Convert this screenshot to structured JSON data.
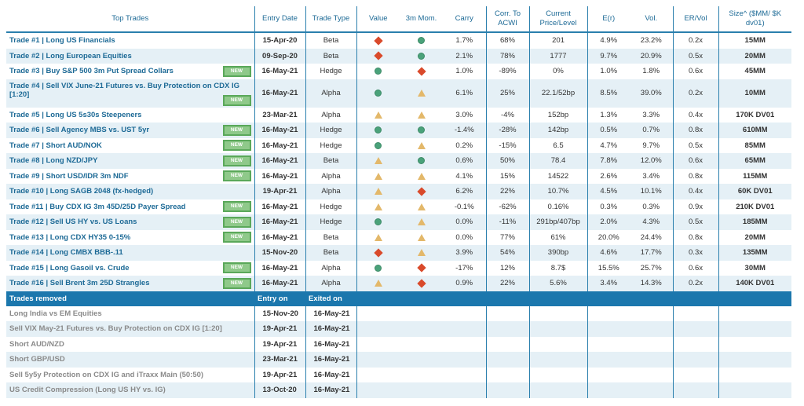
{
  "colors": {
    "header_text": "#1d6a96",
    "row_alt": "#e5f0f6",
    "section_bar": "#1b77ad",
    "new_badge": "#8fc98a",
    "up_circle": "#4aa27a",
    "down_diamond": "#d94a2b",
    "flat_triangle": "#e3b86a"
  },
  "headers": {
    "top_trades": "Top Trades",
    "entry_date": "Entry Date",
    "trade_type": "Trade Type",
    "value": "Value",
    "mom": "3m Mom.",
    "carry": "Carry",
    "corr_l1": "Corr. To",
    "corr_l2": "ACWI",
    "current_l1": "Current",
    "current_l2": "Price/Level",
    "er": "E(r)",
    "vol": "Vol.",
    "ervol": "ER/Vol",
    "size_l1": "Size^ ($MM/ $K",
    "size_l2": "dv01)"
  },
  "new_badge_label": "NEW",
  "trades": [
    {
      "name": "Trade #1  | Long US Financials",
      "new": false,
      "date": "15-Apr-20",
      "type": "Beta",
      "value": "diamond-icon",
      "mom": "circle-icon",
      "carry": "1.7%",
      "corr": "68%",
      "current": "201",
      "er": "4.9%",
      "vol": "23.2%",
      "ervol": "0.2x",
      "size": "15MM"
    },
    {
      "name": "Trade #2  | Long European Equities",
      "new": false,
      "date": "09-Sep-20",
      "type": "Beta",
      "value": "diamond-icon",
      "mom": "circle-icon",
      "carry": "2.1%",
      "corr": "78%",
      "current": "1777",
      "er": "9.7%",
      "vol": "20.9%",
      "ervol": "0.5x",
      "size": "20MM"
    },
    {
      "name": "Trade #3  | Buy S&P 500 3m Put Spread Collars",
      "new": true,
      "date": "16-May-21",
      "type": "Hedge",
      "value": "circle-icon",
      "mom": "diamond-icon",
      "carry": "1.0%",
      "corr": "-89%",
      "current": "0%",
      "er": "1.0%",
      "vol": "1.8%",
      "ervol": "0.6x",
      "size": "45MM"
    },
    {
      "name": "Trade #4  | Sell VIX June-21 Futures vs. Buy Protection on CDX IG [1:20]",
      "new": true,
      "tall": true,
      "date": "16-May-21",
      "type": "Alpha",
      "value": "circle-icon",
      "mom": "triangle-icon",
      "carry": "6.1%",
      "corr": "25%",
      "current": "22.1/52bp",
      "er": "8.5%",
      "vol": "39.0%",
      "ervol": "0.2x",
      "size": "10MM"
    },
    {
      "name": "Trade #5  | Long US 5s30s Steepeners",
      "new": false,
      "date": "23-Mar-21",
      "type": "Alpha",
      "value": "triangle-icon",
      "mom": "triangle-icon",
      "carry": "3.0%",
      "corr": "-4%",
      "current": "152bp",
      "er": "1.3%",
      "vol": "3.3%",
      "ervol": "0.4x",
      "size": "170K DV01"
    },
    {
      "name": "Trade #6  | Sell Agency MBS vs. UST 5yr",
      "new": true,
      "date": "16-May-21",
      "type": "Hedge",
      "value": "circle-icon",
      "mom": "circle-icon",
      "carry": "-1.4%",
      "corr": "-28%",
      "current": "142bp",
      "er": "0.5%",
      "vol": "0.7%",
      "ervol": "0.8x",
      "size": "610MM"
    },
    {
      "name": "Trade #7  | Short AUD/NOK",
      "new": true,
      "date": "16-May-21",
      "type": "Hedge",
      "value": "circle-icon",
      "mom": "triangle-icon",
      "carry": "0.2%",
      "corr": "-15%",
      "current": "6.5",
      "er": "4.7%",
      "vol": "9.7%",
      "ervol": "0.5x",
      "size": "85MM"
    },
    {
      "name": "Trade #8  | Long NZD/JPY",
      "new": true,
      "date": "16-May-21",
      "type": "Beta",
      "value": "triangle-icon",
      "mom": "circle-icon",
      "carry": "0.6%",
      "corr": "50%",
      "current": "78.4",
      "er": "7.8%",
      "vol": "12.0%",
      "ervol": "0.6x",
      "size": "65MM"
    },
    {
      "name": "Trade #9  | Short USD/IDR 3m NDF",
      "new": true,
      "date": "16-May-21",
      "type": "Alpha",
      "value": "triangle-icon",
      "mom": "triangle-icon",
      "carry": "4.1%",
      "corr": "15%",
      "current": "14522",
      "er": "2.6%",
      "vol": "3.4%",
      "ervol": "0.8x",
      "size": "115MM"
    },
    {
      "name": "Trade #10  | Long SAGB 2048 (fx-hedged)",
      "new": false,
      "date": "19-Apr-21",
      "type": "Alpha",
      "value": "triangle-icon",
      "mom": "diamond-icon",
      "carry": "6.2%",
      "corr": "22%",
      "current": "10.7%",
      "er": "4.5%",
      "vol": "10.1%",
      "ervol": "0.4x",
      "size": "60K DV01"
    },
    {
      "name": "Trade #11  | Buy CDX IG 3m 45D/25D Payer Spread",
      "new": true,
      "date": "16-May-21",
      "type": "Hedge",
      "value": "triangle-icon",
      "mom": "triangle-icon",
      "carry": "-0.1%",
      "corr": "-62%",
      "current": "0.16%",
      "er": "0.3%",
      "vol": "0.3%",
      "ervol": "0.9x",
      "size": "210K DV01"
    },
    {
      "name": "Trade #12  | Sell US HY vs. US Loans",
      "new": true,
      "date": "16-May-21",
      "type": "Hedge",
      "value": "circle-icon",
      "mom": "triangle-icon",
      "carry": "0.0%",
      "corr": "-11%",
      "current": "291bp/407bp",
      "er": "2.0%",
      "vol": "4.3%",
      "ervol": "0.5x",
      "size": "185MM"
    },
    {
      "name": "Trade #13  | Long CDX HY35 0-15%",
      "new": true,
      "date": "16-May-21",
      "type": "Beta",
      "value": "triangle-icon",
      "mom": "triangle-icon",
      "carry": "0.0%",
      "corr": "77%",
      "current": "61%",
      "er": "20.0%",
      "vol": "24.4%",
      "ervol": "0.8x",
      "size": "20MM"
    },
    {
      "name": "Trade #14  | Long CMBX BBB-.11",
      "new": false,
      "date": "15-Nov-20",
      "type": "Beta",
      "value": "diamond-icon",
      "mom": "triangle-icon",
      "carry": "3.9%",
      "corr": "54%",
      "current": "390bp",
      "er": "4.6%",
      "vol": "17.7%",
      "ervol": "0.3x",
      "size": "135MM"
    },
    {
      "name": "Trade #15  | Long Gasoil vs. Crude",
      "new": true,
      "date": "16-May-21",
      "type": "Alpha",
      "value": "circle-icon",
      "mom": "diamond-icon",
      "carry": "-17%",
      "corr": "12%",
      "current": "8.7$",
      "er": "15.5%",
      "vol": "25.7%",
      "ervol": "0.6x",
      "size": "30MM"
    },
    {
      "name": "Trade #16  | Sell Brent 3m 25D Strangles",
      "new": true,
      "date": "16-May-21",
      "type": "Alpha",
      "value": "triangle-icon",
      "mom": "diamond-icon",
      "carry": "0.9%",
      "corr": "22%",
      "current": "5.6%",
      "er": "3.4%",
      "vol": "14.3%",
      "ervol": "0.2x",
      "size": "140K DV01"
    }
  ],
  "removed": {
    "title": "Trades removed",
    "entry_label": "Entry on",
    "exit_label": "Exited on",
    "items": [
      {
        "name": "Long India vs EM Equities",
        "entry": "15-Nov-20",
        "exit": "16-May-21"
      },
      {
        "name": "Sell VIX May-21 Futures vs. Buy Protection on CDX IG [1:20]",
        "entry": "19-Apr-21",
        "exit": "16-May-21"
      },
      {
        "name": "Short AUD/NZD",
        "entry": "19-Apr-21",
        "exit": "16-May-21"
      },
      {
        "name": "Short GBP/USD",
        "entry": "23-Mar-21",
        "exit": "16-May-21"
      },
      {
        "name": "Sell 5y5y Protection on CDX IG and iTraxx Main (50:50)",
        "entry": "19-Apr-21",
        "exit": "16-May-21"
      },
      {
        "name": "US Credit Compression (Long US HY vs. IG)",
        "entry": "13-Oct-20",
        "exit": "16-May-21"
      }
    ]
  }
}
